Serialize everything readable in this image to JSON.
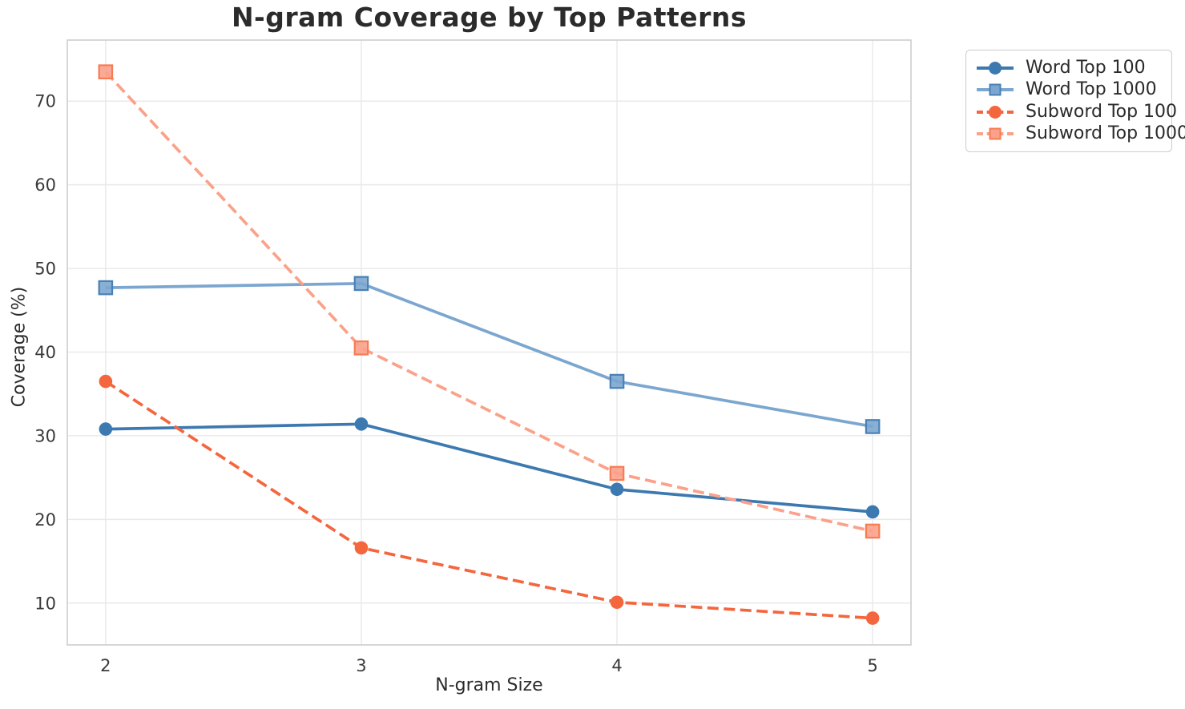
{
  "chart_data": {
    "type": "line",
    "title": "N-gram Coverage by Top Patterns",
    "xlabel": "N-gram Size",
    "ylabel": "Coverage (%)",
    "x": [
      2,
      3,
      4,
      5
    ],
    "xticks": [
      2,
      3,
      4,
      5
    ],
    "yticks": [
      10,
      20,
      30,
      40,
      50,
      60,
      70
    ],
    "xlim": [
      1.85,
      5.15
    ],
    "ylim": [
      5.0,
      77.3
    ],
    "grid": true,
    "legend_position": "outside-top-right",
    "series": [
      {
        "name": "Word Top 100",
        "values": [
          30.8,
          31.4,
          23.6,
          20.9
        ],
        "color": "#3c79b0",
        "edge": "#3c79b0",
        "line_style": "solid",
        "marker": "circle"
      },
      {
        "name": "Word Top 1000",
        "values": [
          47.7,
          48.2,
          36.5,
          31.1
        ],
        "color": "#7ba6cf",
        "edge": "#4a80b6",
        "line_style": "solid",
        "marker": "square"
      },
      {
        "name": "Subword Top 100",
        "values": [
          36.5,
          16.6,
          10.1,
          8.2
        ],
        "color": "#f4663d",
        "edge": "#f4663d",
        "line_style": "dashed",
        "marker": "circle"
      },
      {
        "name": "Subword Top 1000",
        "values": [
          73.5,
          40.5,
          25.5,
          18.6
        ],
        "color": "#fba189",
        "edge": "#f67c52",
        "line_style": "dashed",
        "marker": "square"
      }
    ],
    "style": {
      "background": "#ffffff",
      "grid_color": "#e9e9e9",
      "frame_color": "#cdcdcd",
      "tick_label_color": "#3a3a3a",
      "text_color": "#2b2b2b"
    }
  }
}
